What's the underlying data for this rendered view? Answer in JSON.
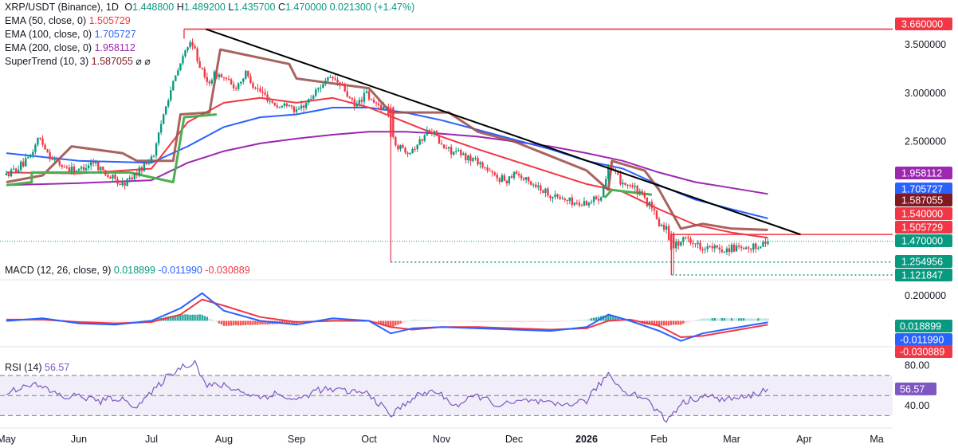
{
  "header": {
    "symbol": "XRP/USDT (Binance), 1D",
    "o_label": "O",
    "o": "1.448800",
    "h_label": "H",
    "h": "1.489200",
    "l_label": "L",
    "l": "1.435700",
    "c_label": "C",
    "c": "1.470000",
    "change": "0.021300 (+1.47%)"
  },
  "indicators": [
    {
      "label": "EMA (50, close, 0)",
      "value": "1.505729",
      "color": "#f23645"
    },
    {
      "label": "EMA (100, close, 0)",
      "value": "1.705727",
      "color": "#2962ff"
    },
    {
      "label": "EMA (200, close, 0)",
      "value": "1.958112",
      "color": "#9c27b0"
    },
    {
      "label": "SuperTrend (10, 3)",
      "value": "1.587055",
      "color": "#801922",
      "extra": "⌀ ⌀"
    }
  ],
  "macd": {
    "label": "MACD (12, 26, close, 9)",
    "hist": "0.018899",
    "macd": "-0.011990",
    "signal": "-0.030889"
  },
  "rsi": {
    "label": "RSI (14)",
    "value": "56.57"
  },
  "colors": {
    "up": "#089981",
    "down": "#f23645",
    "ema50": "#f23645",
    "ema100": "#2962ff",
    "ema200": "#9c27b0",
    "st_bear": "#a0524d",
    "st_bull": "#4caf50",
    "trend": "#000000",
    "resist": "#f23645",
    "rsi": "#7e57c2"
  },
  "chart_data": [
    {
      "type": "candlestick",
      "title": "XRP/USDT (Binance), 1D",
      "x_axis_labels": [
        "May",
        "Jun",
        "Jul",
        "Aug",
        "Sep",
        "Oct",
        "Nov",
        "Dec",
        "2026",
        "Feb",
        "Mar",
        "Apr",
        "Ma"
      ],
      "y_ticks": [
        3.5,
        3.0,
        2.5
      ],
      "y_tick_labels": [
        "3.500000",
        "3.000000",
        "2.500000"
      ],
      "ylim": [
        1.08,
        3.78
      ],
      "price_tags": [
        {
          "value": 3.66,
          "label": "3.660000",
          "bg": "#f23645",
          "fg": "#ffffff"
        },
        {
          "value": 1.958112,
          "label": "1.958112",
          "bg": "#9c27b0",
          "fg": "#ffffff"
        },
        {
          "value": 1.705727,
          "label": "1.705727",
          "bg": "#2962ff",
          "fg": "#ffffff"
        },
        {
          "value": 1.587055,
          "label": "1.587055",
          "bg": "#801922",
          "fg": "#ffffff"
        },
        {
          "value": 1.54,
          "label": "1.540000",
          "bg": "#f23645",
          "fg": "#ffffff"
        },
        {
          "value": 1.505729,
          "label": "1.505729",
          "bg": "#f23645",
          "fg": "#ffffff"
        },
        {
          "value": 1.47,
          "label": "1.470000",
          "bg": "#089981",
          "fg": "#ffffff"
        },
        {
          "value": 1.254956,
          "label": "1.254956",
          "bg": "#089981",
          "fg": "#ffffff"
        },
        {
          "value": 1.121847,
          "label": "1.121847",
          "bg": "#089981",
          "fg": "#ffffff"
        }
      ],
      "trendline": {
        "start": {
          "month": 2.75,
          "value": 3.66
        },
        "end": {
          "month": 10.95,
          "value": 1.54
        }
      },
      "horizontal_levels": [
        {
          "value": 3.66,
          "style": "solid",
          "color": "#f23645"
        },
        {
          "value": 1.54,
          "style": "solid",
          "color": "#f23645"
        },
        {
          "value": 1.254956,
          "style": "dotted",
          "color": "#089981"
        },
        {
          "value": 1.121847,
          "style": "dotted",
          "color": "#089981"
        }
      ],
      "close_anchors": [
        [
          0.0,
          2.15
        ],
        [
          0.3,
          2.3
        ],
        [
          0.45,
          2.55
        ],
        [
          0.6,
          2.35
        ],
        [
          0.75,
          2.25
        ],
        [
          1.0,
          2.2
        ],
        [
          1.2,
          2.3
        ],
        [
          1.4,
          2.15
        ],
        [
          1.6,
          2.05
        ],
        [
          1.75,
          2.15
        ],
        [
          1.9,
          2.25
        ],
        [
          2.05,
          2.4
        ],
        [
          2.2,
          2.9
        ],
        [
          2.35,
          3.2
        ],
        [
          2.5,
          3.5
        ],
        [
          2.6,
          3.45
        ],
        [
          2.75,
          3.1
        ],
        [
          2.9,
          3.2
        ],
        [
          3.0,
          3.15
        ],
        [
          3.15,
          3.05
        ],
        [
          3.3,
          3.2
        ],
        [
          3.45,
          3.05
        ],
        [
          3.6,
          2.95
        ],
        [
          3.75,
          2.85
        ],
        [
          3.9,
          2.9
        ],
        [
          4.0,
          2.8
        ],
        [
          4.2,
          2.95
        ],
        [
          4.35,
          3.1
        ],
        [
          4.5,
          3.15
        ],
        [
          4.65,
          3.05
        ],
        [
          4.8,
          2.85
        ],
        [
          4.95,
          3.0
        ],
        [
          5.05,
          2.9
        ],
        [
          5.2,
          2.85
        ],
        [
          5.26,
          2.85
        ],
        [
          5.3,
          2.55
        ],
        [
          5.4,
          2.45
        ],
        [
          5.55,
          2.4
        ],
        [
          5.7,
          2.5
        ],
        [
          5.85,
          2.65
        ],
        [
          6.0,
          2.45
        ],
        [
          6.15,
          2.4
        ],
        [
          6.3,
          2.35
        ],
        [
          6.5,
          2.3
        ],
        [
          6.7,
          2.15
        ],
        [
          6.9,
          2.1
        ],
        [
          7.0,
          2.2
        ],
        [
          7.15,
          2.1
        ],
        [
          7.3,
          2.05
        ],
        [
          7.5,
          1.95
        ],
        [
          7.7,
          1.9
        ],
        [
          7.9,
          1.85
        ],
        [
          8.1,
          1.9
        ],
        [
          8.2,
          1.95
        ],
        [
          8.3,
          2.25
        ],
        [
          8.45,
          2.1
        ],
        [
          8.6,
          2.05
        ],
        [
          8.75,
          1.95
        ],
        [
          8.9,
          1.8
        ],
        [
          9.0,
          1.65
        ],
        [
          9.1,
          1.6
        ],
        [
          9.17,
          1.4
        ],
        [
          9.25,
          1.45
        ],
        [
          9.4,
          1.5
        ],
        [
          9.55,
          1.42
        ],
        [
          9.7,
          1.4
        ],
        [
          9.85,
          1.38
        ],
        [
          10.0,
          1.4
        ],
        [
          10.2,
          1.37
        ],
        [
          10.35,
          1.42
        ],
        [
          10.5,
          1.47
        ]
      ],
      "ema50_anchors": [
        [
          0,
          2.18
        ],
        [
          1,
          2.17
        ],
        [
          2,
          2.22
        ],
        [
          2.5,
          2.7
        ],
        [
          3,
          2.9
        ],
        [
          3.5,
          2.95
        ],
        [
          4,
          2.9
        ],
        [
          4.5,
          2.95
        ],
        [
          5,
          2.85
        ],
        [
          5.5,
          2.7
        ],
        [
          6,
          2.55
        ],
        [
          6.5,
          2.42
        ],
        [
          7,
          2.3
        ],
        [
          7.5,
          2.18
        ],
        [
          8,
          2.06
        ],
        [
          8.5,
          1.98
        ],
        [
          9,
          1.8
        ],
        [
          9.5,
          1.64
        ],
        [
          10,
          1.56
        ],
        [
          10.5,
          1.505729
        ]
      ],
      "ema100_anchors": [
        [
          0,
          2.38
        ],
        [
          1,
          2.3
        ],
        [
          2,
          2.28
        ],
        [
          2.5,
          2.45
        ],
        [
          3,
          2.65
        ],
        [
          3.5,
          2.75
        ],
        [
          4,
          2.78
        ],
        [
          4.5,
          2.85
        ],
        [
          5,
          2.85
        ],
        [
          5.5,
          2.8
        ],
        [
          6,
          2.72
        ],
        [
          6.5,
          2.62
        ],
        [
          7,
          2.52
        ],
        [
          7.5,
          2.42
        ],
        [
          8,
          2.3
        ],
        [
          8.5,
          2.22
        ],
        [
          9,
          2.05
        ],
        [
          9.5,
          1.9
        ],
        [
          10,
          1.8
        ],
        [
          10.5,
          1.705727
        ]
      ],
      "ema200_anchors": [
        [
          0,
          2.05
        ],
        [
          1,
          2.07
        ],
        [
          2,
          2.1
        ],
        [
          2.5,
          2.28
        ],
        [
          3,
          2.4
        ],
        [
          3.5,
          2.48
        ],
        [
          4,
          2.53
        ],
        [
          4.5,
          2.57
        ],
        [
          5,
          2.6
        ],
        [
          5.5,
          2.6
        ],
        [
          6,
          2.58
        ],
        [
          6.5,
          2.55
        ],
        [
          7,
          2.5
        ],
        [
          7.5,
          2.45
        ],
        [
          8,
          2.38
        ],
        [
          8.5,
          2.3
        ],
        [
          9,
          2.18
        ],
        [
          9.5,
          2.08
        ],
        [
          10,
          2.02
        ],
        [
          10.5,
          1.958112
        ]
      ],
      "supertrend_anchors": [
        [
          0,
          2.08
        ],
        [
          0.5,
          2.15
        ],
        [
          0.9,
          2.45
        ],
        [
          1.6,
          2.38
        ],
        [
          1.8,
          2.3
        ],
        [
          2.3,
          2.3
        ],
        [
          2.4,
          2.78
        ],
        [
          2.8,
          2.8
        ],
        [
          2.95,
          3.45
        ],
        [
          3.9,
          3.3
        ],
        [
          4.0,
          3.15
        ],
        [
          5.0,
          3.05
        ],
        [
          5.3,
          2.8
        ],
        [
          6.1,
          2.8
        ],
        [
          6.5,
          2.6
        ],
        [
          7.0,
          2.5
        ],
        [
          7.5,
          2.35
        ],
        [
          8.0,
          2.2
        ],
        [
          8.3,
          2.0
        ],
        [
          8.35,
          2.3
        ],
        [
          8.8,
          2.2
        ],
        [
          9.0,
          2.0
        ],
        [
          9.3,
          1.6
        ],
        [
          9.6,
          1.65
        ],
        [
          10.0,
          1.6
        ],
        [
          10.5,
          1.587055
        ]
      ],
      "supertrend_bull_segments": [
        [
          [
            0.0,
            2.05
          ],
          [
            0.35,
            2.08
          ],
          [
            0.35,
            2.18
          ],
          [
            1.7,
            2.18
          ],
          [
            2.3,
            2.08
          ],
          [
            2.45,
            2.75
          ],
          [
            2.9,
            2.78
          ]
        ],
        [
          [
            8.25,
            1.92
          ],
          [
            8.35,
            2.0
          ],
          [
            8.9,
            1.95
          ]
        ]
      ]
    },
    {
      "type": "macd",
      "title": "MACD (12, 26, close, 9)",
      "y_ticks": [
        0.2
      ],
      "y_tick_labels": [
        "0.200000"
      ],
      "ylim": [
        -0.2,
        0.32
      ],
      "price_tags": [
        {
          "value": 0.018899,
          "label": "0.018899",
          "bg": "#089981"
        },
        {
          "value": -0.01199,
          "label": "-0.011990",
          "bg": "#2962ff"
        },
        {
          "value": -0.030889,
          "label": "-0.030889",
          "bg": "#f23645"
        }
      ],
      "macd_anchors": [
        [
          0,
          0.0
        ],
        [
          0.5,
          0.02
        ],
        [
          1,
          -0.02
        ],
        [
          1.5,
          -0.03
        ],
        [
          2,
          0.0
        ],
        [
          2.4,
          0.1
        ],
        [
          2.7,
          0.22
        ],
        [
          3,
          0.08
        ],
        [
          3.5,
          0.0
        ],
        [
          4,
          -0.03
        ],
        [
          4.5,
          0.02
        ],
        [
          5,
          0.0
        ],
        [
          5.3,
          -0.1
        ],
        [
          5.6,
          -0.06
        ],
        [
          6,
          -0.05
        ],
        [
          6.5,
          -0.06
        ],
        [
          7,
          -0.07
        ],
        [
          7.5,
          -0.08
        ],
        [
          8,
          -0.05
        ],
        [
          8.3,
          0.05
        ],
        [
          8.6,
          0.0
        ],
        [
          9,
          -0.08
        ],
        [
          9.3,
          -0.16
        ],
        [
          9.6,
          -0.1
        ],
        [
          10,
          -0.06
        ],
        [
          10.5,
          -0.01199
        ]
      ],
      "signal_anchors": [
        [
          0,
          0.01
        ],
        [
          0.5,
          0.01
        ],
        [
          1,
          -0.01
        ],
        [
          1.5,
          -0.02
        ],
        [
          2,
          -0.01
        ],
        [
          2.4,
          0.05
        ],
        [
          2.7,
          0.17
        ],
        [
          3,
          0.12
        ],
        [
          3.5,
          0.03
        ],
        [
          4,
          -0.01
        ],
        [
          4.5,
          0.0
        ],
        [
          5,
          0.0
        ],
        [
          5.3,
          -0.05
        ],
        [
          5.6,
          -0.07
        ],
        [
          6,
          -0.05
        ],
        [
          6.5,
          -0.05
        ],
        [
          7,
          -0.06
        ],
        [
          7.5,
          -0.07
        ],
        [
          8,
          -0.06
        ],
        [
          8.3,
          0.0
        ],
        [
          8.6,
          0.01
        ],
        [
          9,
          -0.04
        ],
        [
          9.3,
          -0.13
        ],
        [
          9.6,
          -0.12
        ],
        [
          10,
          -0.08
        ],
        [
          10.5,
          -0.030889
        ]
      ]
    },
    {
      "type": "line",
      "title": "RSI (14)",
      "y_ticks": [
        80,
        40
      ],
      "y_tick_labels": [
        "80.00",
        "40.00"
      ],
      "ylim": [
        20,
        97
      ],
      "band": [
        30,
        70
      ],
      "midline": 50,
      "value_tag": {
        "value": 56.57,
        "label": "56.57",
        "bg": "#7e57c2"
      },
      "rsi_anchors": [
        [
          0,
          52
        ],
        [
          0.3,
          62
        ],
        [
          0.5,
          58
        ],
        [
          0.8,
          48
        ],
        [
          1.0,
          50
        ],
        [
          1.3,
          44
        ],
        [
          1.5,
          48
        ],
        [
          1.8,
          40
        ],
        [
          2.0,
          52
        ],
        [
          2.2,
          68
        ],
        [
          2.4,
          78
        ],
        [
          2.6,
          84
        ],
        [
          2.75,
          60
        ],
        [
          3.0,
          60
        ],
        [
          3.2,
          55
        ],
        [
          3.5,
          48
        ],
        [
          3.7,
          52
        ],
        [
          4.0,
          45
        ],
        [
          4.3,
          56
        ],
        [
          4.6,
          55
        ],
        [
          5.0,
          52
        ],
        [
          5.3,
          30
        ],
        [
          5.6,
          48
        ],
        [
          5.9,
          55
        ],
        [
          6.2,
          40
        ],
        [
          6.5,
          50
        ],
        [
          6.8,
          40
        ],
        [
          7.2,
          45
        ],
        [
          7.6,
          40
        ],
        [
          8.0,
          45
        ],
        [
          8.3,
          72
        ],
        [
          8.5,
          55
        ],
        [
          8.8,
          48
        ],
        [
          9.1,
          25
        ],
        [
          9.3,
          42
        ],
        [
          9.6,
          50
        ],
        [
          9.9,
          46
        ],
        [
          10.2,
          48
        ],
        [
          10.5,
          56.57
        ]
      ]
    }
  ]
}
